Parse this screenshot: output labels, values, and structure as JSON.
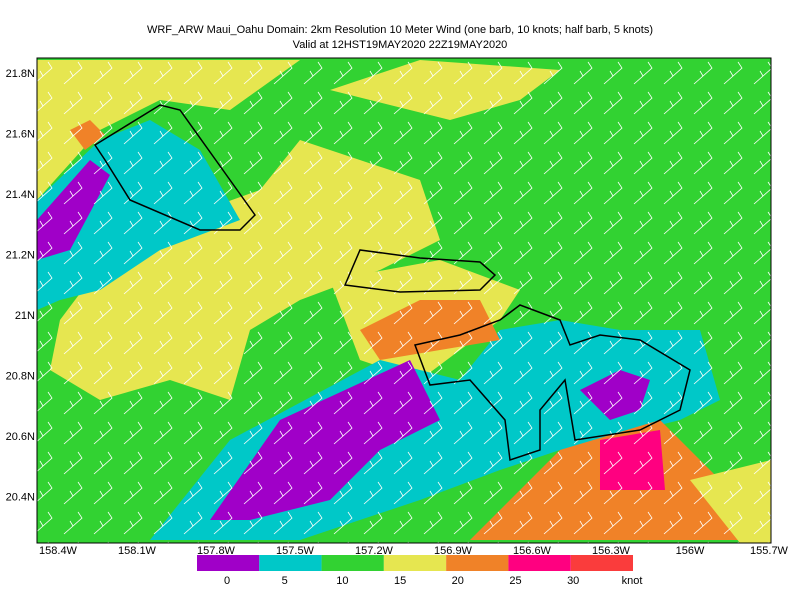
{
  "header": {
    "title": "WRF_ARW Maui_Oahu Domain: 2km Resolution  10 Meter Wind (one barb, 10 knots; half barb, 5 knots)",
    "subtitle": "Valid at 12HST19MAY2020  22Z19MAY2020"
  },
  "map": {
    "lat_labels": [
      "21.8N",
      "21.6N",
      "21.4N",
      "21.2N",
      "21N",
      "20.8N",
      "20.6N",
      "20.4N"
    ],
    "lon_labels": [
      "158.4W",
      "158.1W",
      "157.8W",
      "157.5W",
      "157.2W",
      "156.9W",
      "156.6W",
      "156.3W",
      "156W",
      "155.7W"
    ]
  },
  "colorbar": {
    "colors": [
      "#a000c8",
      "#00c8c8",
      "#32d232",
      "#e6e650",
      "#f08228",
      "#ff0080",
      "#fa3c3c"
    ],
    "labels": [
      "0",
      "5",
      "10",
      "15",
      "20",
      "25",
      "30"
    ],
    "unit": "knot"
  }
}
